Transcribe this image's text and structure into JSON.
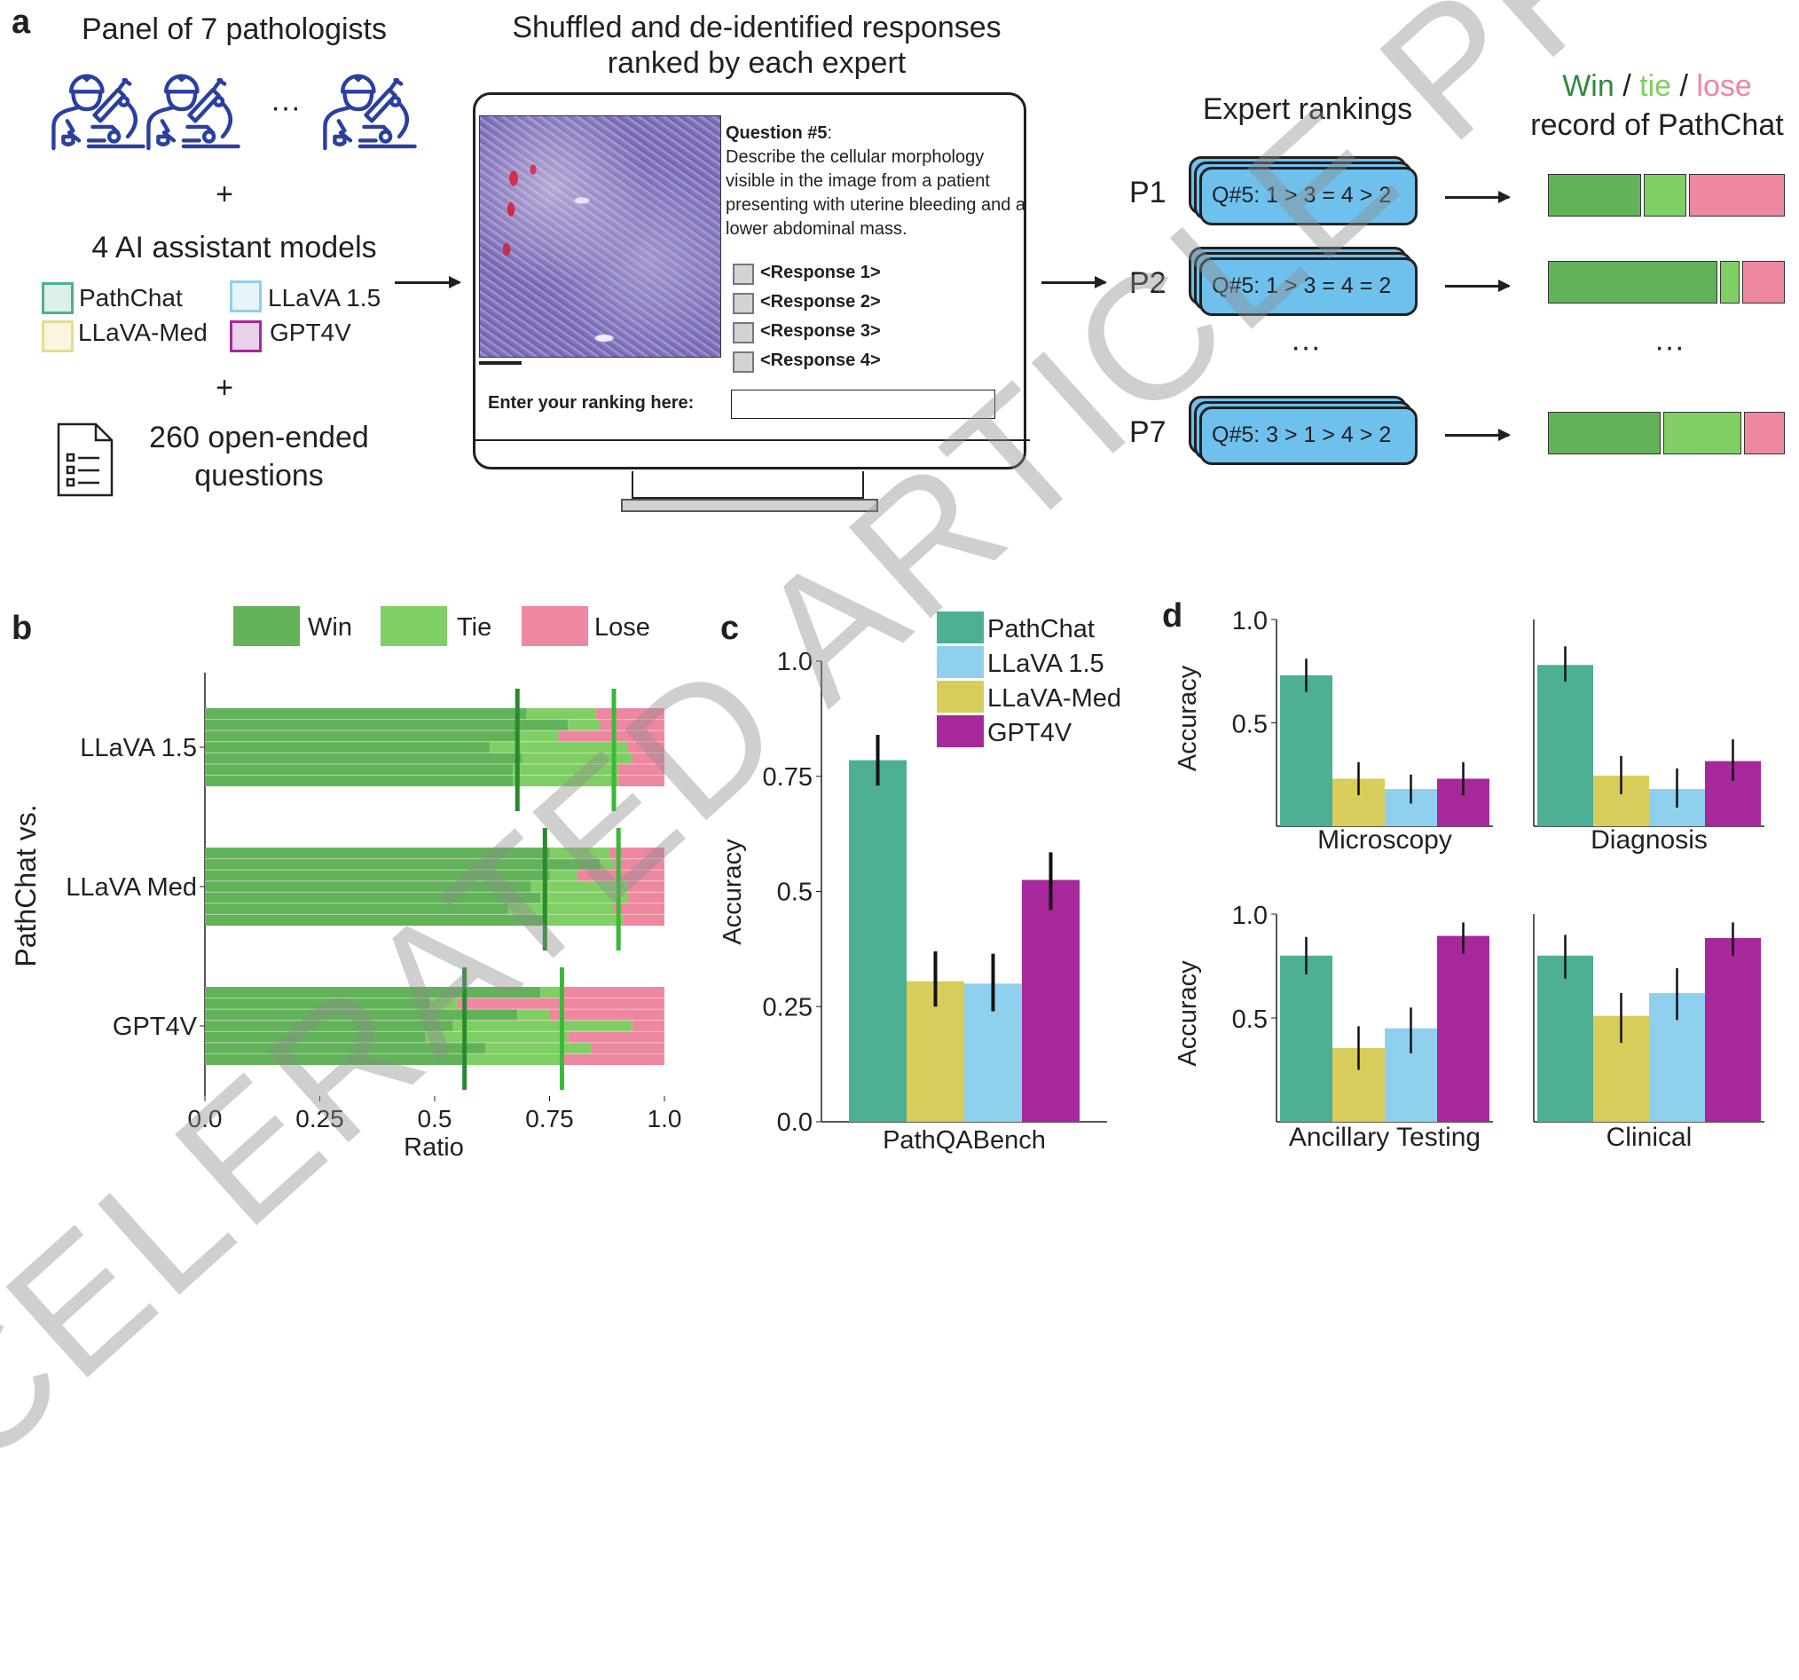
{
  "panel_a": {
    "label": "a",
    "panel_title": "Panel of 7 pathologists",
    "ellipsis": "···",
    "plus": "+",
    "models_title": "4 AI assistant models",
    "models": [
      {
        "name": "PathChat",
        "color": "#4daf94"
      },
      {
        "name": "LLaVA 1.5",
        "color": "#8fd0ef"
      },
      {
        "name": "LLaVA-Med",
        "color": "#d8cd5a"
      },
      {
        "name": "GPT4V",
        "color": "#a6289b"
      }
    ],
    "questions_line1": "260 open-ended",
    "questions_line2": "questions",
    "screen_title_line1": "Shuffled and de-identified responses",
    "screen_title_line2": "ranked by each expert",
    "question_label": "Question #5",
    "question_colon": ":",
    "question_text": "Describe the cellular morphology visible in the image from a patient presenting with uterine bleeding and a lower abdominal mass.",
    "responses": [
      "<Response 1>",
      "<Response 2>",
      "<Response 3>",
      "<Response 4>"
    ],
    "ranking_label": "Enter your ranking here:",
    "ranking_value": "",
    "expert_rankings_title": "Expert rankings",
    "record_title_win": "Win",
    "record_title_sep": "/",
    "record_title_tie": "tie",
    "record_title_lose": "lose",
    "record_title_line2": "record of PathChat",
    "experts": [
      {
        "id": "P1",
        "ranking": "Q#5: 1 > 3 = 4 > 2",
        "record": {
          "win": 0.4,
          "tie": 0.19,
          "lose": 0.41
        }
      },
      {
        "id": "P2",
        "ranking": "Q#5: 1 > 3 = 4 = 2",
        "record": {
          "win": 0.72,
          "tie": 0.09,
          "lose": 0.19
        }
      },
      {
        "id": "P7",
        "ranking": "Q#5: 3 > 1 > 4 > 2",
        "record": {
          "win": 0.48,
          "tie": 0.34,
          "lose": 0.18
        }
      }
    ],
    "colors": {
      "win": "#2e8b3a",
      "tie": "#7fce62",
      "lose": "#ef859f"
    }
  },
  "watermark": "ACCELERATED ARTICLE PREVIEW",
  "chart_data": [
    {
      "panel": "b",
      "type": "bar",
      "orientation": "horizontal-stacked",
      "xlabel": "Ratio",
      "ylabel": "PathChat vs.",
      "xlim": [
        0,
        1
      ],
      "xticks": [
        "0.0",
        "0.25",
        "0.5",
        "0.75",
        "1.0"
      ],
      "xtick_values": [
        0,
        0.25,
        0.5,
        0.75,
        1.0
      ],
      "legend": [
        "Win",
        "Tie",
        "Lose"
      ],
      "legend_position": "top",
      "colors": {
        "win": "#62b25a",
        "tie": "#80cf64",
        "lose": "#ee87a0",
        "mean_win": "#2a8a30",
        "mean_tie": "#3cb83a"
      },
      "categories": [
        "LLaVA 1.5",
        "LLaVA Med",
        "GPT4V"
      ],
      "per_pathologist_win": [
        [
          0.7,
          0.79,
          0.68,
          0.62,
          0.69,
          0.67,
          0.67
        ],
        [
          0.75,
          0.86,
          0.75,
          0.71,
          0.73,
          0.66,
          0.74
        ],
        [
          0.73,
          0.49,
          0.68,
          0.54,
          0.48,
          0.61,
          0.56
        ]
      ],
      "per_pathologist_win_plus_tie": [
        [
          0.85,
          0.86,
          0.77,
          0.92,
          0.93,
          0.9,
          0.9
        ],
        [
          0.88,
          0.89,
          0.81,
          0.92,
          0.92,
          0.89,
          0.91
        ],
        [
          0.78,
          0.55,
          0.75,
          0.93,
          0.79,
          0.84,
          0.78
        ]
      ],
      "mean_win": [
        0.68,
        0.74,
        0.565
      ],
      "mean_win_plus_tie": [
        0.89,
        0.9,
        0.777
      ]
    },
    {
      "panel": "c",
      "type": "bar",
      "ylabel": "Accuracy",
      "ylim": [
        0,
        1
      ],
      "yticks": [
        "0.0",
        "0.25",
        "0.5",
        "0.75",
        "1.0"
      ],
      "ytick_values": [
        0,
        0.25,
        0.5,
        0.75,
        1.0
      ],
      "categories": [
        "PathQABench"
      ],
      "legend_position": "top-right",
      "series": [
        {
          "name": "PathChat",
          "color": "#4daf94",
          "values": [
            0.785
          ],
          "err": [
            [
              0.73,
              0.84
            ]
          ]
        },
        {
          "name": "LLaVA 1.5",
          "color": "#8fd0ef",
          "values": [
            0.3
          ],
          "err": [
            [
              0.24,
              0.365
            ]
          ]
        },
        {
          "name": "LLaVA-Med",
          "color": "#d8cd5a",
          "values": [
            0.305
          ],
          "err": [
            [
              0.25,
              0.37
            ]
          ]
        },
        {
          "name": "GPT4V",
          "color": "#a6289b",
          "values": [
            0.525
          ],
          "err": [
            [
              0.46,
              0.585
            ]
          ]
        }
      ],
      "bar_order": [
        "PathChat",
        "LLaVA-Med",
        "LLaVA 1.5",
        "GPT4V"
      ]
    },
    {
      "panel": "d",
      "type": "bar",
      "ylabel": "Accuracy",
      "ylim": [
        0,
        1
      ],
      "yticks": [
        "1.0",
        "0.5"
      ],
      "ytick_values": [
        1.0,
        0.5
      ],
      "subplots": [
        {
          "category": "Microscopy",
          "values": {
            "PathChat": 0.73,
            "LLaVA-Med": 0.23,
            "LLaVA 1.5": 0.18,
            "GPT4V": 0.23
          },
          "err": {
            "PathChat": [
              0.65,
              0.81
            ],
            "LLaVA-Med": [
              0.15,
              0.31
            ],
            "LLaVA 1.5": [
              0.11,
              0.25
            ],
            "GPT4V": [
              0.15,
              0.31
            ]
          }
        },
        {
          "category": "Diagnosis",
          "values": {
            "PathChat": 0.78,
            "LLaVA-Med": 0.245,
            "LLaVA 1.5": 0.18,
            "GPT4V": 0.315
          },
          "err": {
            "PathChat": [
              0.7,
              0.87
            ],
            "LLaVA-Med": [
              0.155,
              0.34
            ],
            "LLaVA 1.5": [
              0.09,
              0.28
            ],
            "GPT4V": [
              0.22,
              0.42
            ]
          }
        },
        {
          "category": "Ancillary Testing",
          "values": {
            "PathChat": 0.8,
            "LLaVA-Med": 0.355,
            "LLaVA 1.5": 0.45,
            "GPT4V": 0.895
          },
          "err": {
            "PathChat": [
              0.71,
              0.89
            ],
            "LLaVA-Med": [
              0.25,
              0.46
            ],
            "LLaVA 1.5": [
              0.33,
              0.55
            ],
            "GPT4V": [
              0.81,
              0.96
            ]
          }
        },
        {
          "category": "Clinical",
          "values": {
            "PathChat": 0.8,
            "LLaVA-Med": 0.51,
            "LLaVA 1.5": 0.62,
            "GPT4V": 0.885
          },
          "err": {
            "PathChat": [
              0.69,
              0.9
            ],
            "LLaVA-Med": [
              0.38,
              0.62
            ],
            "LLaVA 1.5": [
              0.49,
              0.74
            ],
            "GPT4V": [
              0.8,
              0.96
            ]
          }
        }
      ],
      "bar_order": [
        "PathChat",
        "LLaVA-Med",
        "LLaVA 1.5",
        "GPT4V"
      ],
      "colors": {
        "PathChat": "#4daf94",
        "LLaVA 1.5": "#8fd0ef",
        "LLaVA-Med": "#d8cd5a",
        "GPT4V": "#a6289b"
      }
    }
  ]
}
